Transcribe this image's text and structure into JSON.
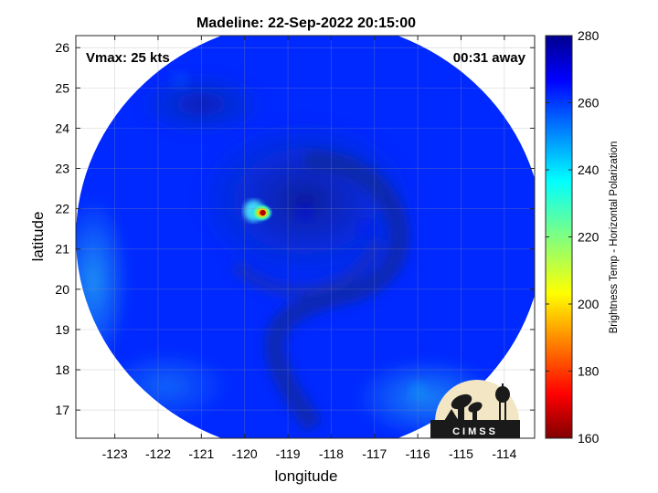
{
  "chart_data": {
    "type": "heatmap",
    "title": "Madeline: 22-Sep-2022 20:15:00",
    "xlabel": "longitude",
    "ylabel": "latitude",
    "xlim": [
      -123.9,
      -113.3
    ],
    "ylim": [
      16.3,
      26.3
    ],
    "xticks": [
      -123,
      -122,
      -121,
      -120,
      -119,
      -118,
      -117,
      -116,
      -115,
      -114
    ],
    "yticks": [
      17,
      18,
      19,
      20,
      21,
      22,
      23,
      24,
      25,
      26
    ],
    "grid": true,
    "annotations": {
      "vmax": "Vmax: 25 kts",
      "time_away": "00:31 away"
    },
    "colorbar": {
      "label": "Brightness Temp - Horizontal Polarization",
      "min": 160,
      "max": 280,
      "ticks": [
        160,
        180,
        200,
        220,
        240,
        260,
        280
      ],
      "colormap": "jet"
    },
    "swath": {
      "center_lon": -118.5,
      "center_lat": 21.3,
      "lon_radius": 5.4,
      "lat_radius": 5.4,
      "background_temp": 262
    },
    "features": [
      {
        "name": "storm-core",
        "lon": -118.6,
        "lat": 21.9,
        "temp": 268
      },
      {
        "name": "spiral-band",
        "lon": -117.2,
        "lat": 21.5,
        "temp": 266
      },
      {
        "name": "north-dry-region",
        "lon": -121.5,
        "lat": 25.2,
        "temp": 255
      },
      {
        "name": "convective-cell",
        "lon": -119.6,
        "lat": 21.9,
        "temp": 185
      },
      {
        "name": "warm-coast-region",
        "lon": -116.0,
        "lat": 17.5,
        "temp": 247
      }
    ]
  },
  "logo": {
    "text": "CIMSS"
  }
}
